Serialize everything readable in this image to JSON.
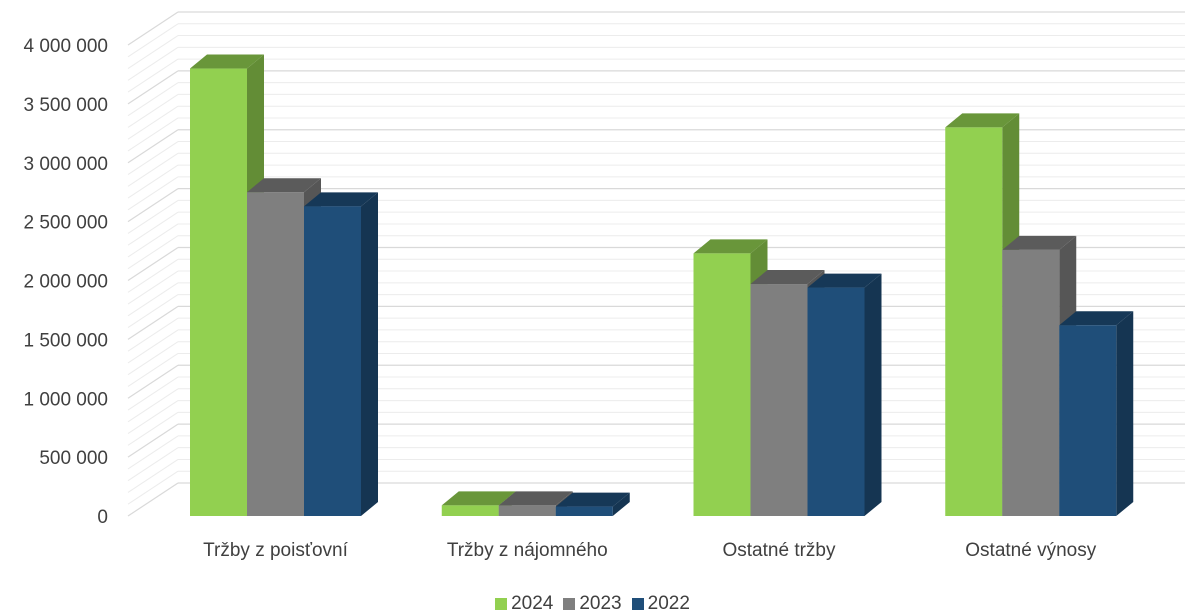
{
  "chart_data": {
    "type": "bar",
    "style": "3d-clustered-column",
    "categories": [
      "Tržby z poisťovní",
      "Tržby z nájomného",
      "Ostatné tržby",
      "Ostatné výnosy"
    ],
    "series": [
      {
        "name": "2024",
        "color": "#92D050",
        "values": [
          3800000,
          90000,
          2230000,
          3300000
        ]
      },
      {
        "name": "2023",
        "color": "#7F7F7F",
        "values": [
          2750000,
          90000,
          1970000,
          2260000
        ]
      },
      {
        "name": "2022",
        "color": "#1F4E79",
        "values": [
          2630000,
          80000,
          1940000,
          1620000
        ]
      }
    ],
    "y_ticks": [
      "0",
      "500 000",
      "1 000 000",
      "1 500 000",
      "2 000 000",
      "2 500 000",
      "3 000 000",
      "3 500 000",
      "4 000 000"
    ],
    "ylim": [
      0,
      4000000
    ],
    "grid": true,
    "legend_position": "bottom"
  }
}
